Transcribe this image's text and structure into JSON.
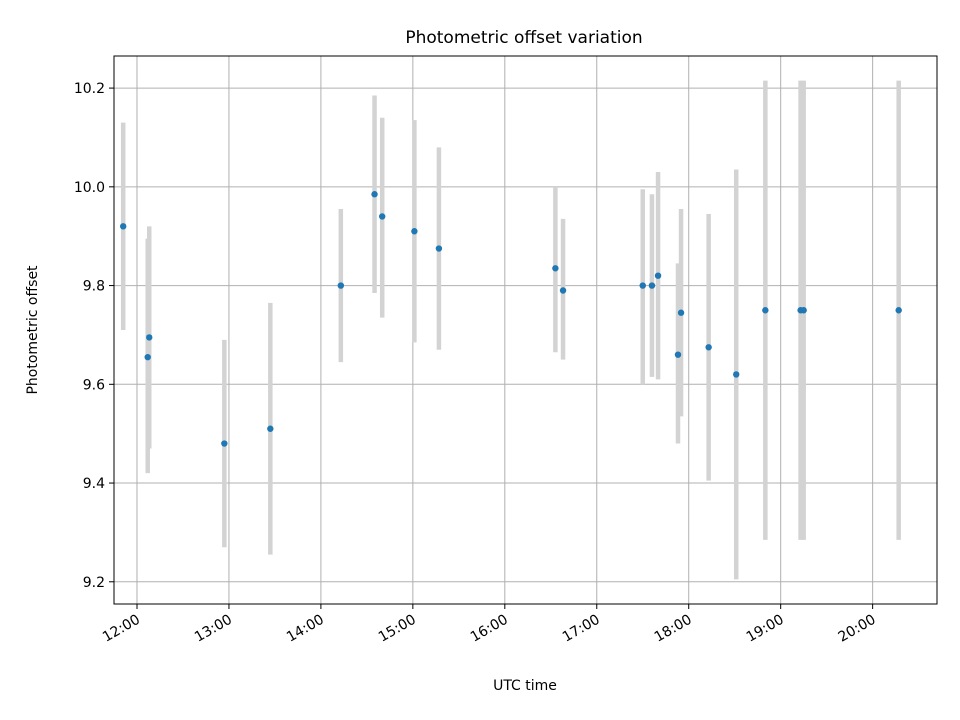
{
  "chart_data": {
    "type": "scatter",
    "title": "Photometric offset variation",
    "xlabel": "UTC time",
    "ylabel": "Photometric offset",
    "xlim": [
      "11:45",
      "20:42"
    ],
    "ylim": [
      9.155,
      10.265
    ],
    "x_ticks": [
      "12:00",
      "13:00",
      "14:00",
      "15:00",
      "16:00",
      "17:00",
      "18:00",
      "19:00",
      "20:00"
    ],
    "y_ticks": [
      "9.2",
      "9.4",
      "9.6",
      "9.8",
      "10.0",
      "10.2"
    ],
    "grid": true,
    "colors": {
      "points": "#1f77b4",
      "errorbars": "#d3d3d3",
      "grid": "#b0b0b0"
    },
    "points": [
      {
        "x": "11:51",
        "y": 9.92,
        "err_low": 9.71,
        "err_high": 10.13
      },
      {
        "x": "12:07",
        "y": 9.655,
        "err_low": 9.42,
        "err_high": 9.895
      },
      {
        "x": "12:08",
        "y": 9.695,
        "err_low": 9.47,
        "err_high": 9.92
      },
      {
        "x": "12:57",
        "y": 9.48,
        "err_low": 9.27,
        "err_high": 9.69
      },
      {
        "x": "13:27",
        "y": 9.51,
        "err_low": 9.255,
        "err_high": 9.765
      },
      {
        "x": "14:13",
        "y": 9.8,
        "err_low": 9.645,
        "err_high": 9.955
      },
      {
        "x": "14:35",
        "y": 9.985,
        "err_low": 9.785,
        "err_high": 10.185
      },
      {
        "x": "14:40",
        "y": 9.94,
        "err_low": 9.735,
        "err_high": 10.14
      },
      {
        "x": "15:01",
        "y": 9.91,
        "err_low": 9.685,
        "err_high": 10.135
      },
      {
        "x": "15:17",
        "y": 9.875,
        "err_low": 9.67,
        "err_high": 10.08
      },
      {
        "x": "16:33",
        "y": 9.835,
        "err_low": 9.665,
        "err_high": 10.0
      },
      {
        "x": "16:38",
        "y": 9.79,
        "err_low": 9.65,
        "err_high": 9.935
      },
      {
        "x": "17:30",
        "y": 9.8,
        "err_low": 9.6,
        "err_high": 9.995
      },
      {
        "x": "17:36",
        "y": 9.8,
        "err_low": 9.615,
        "err_high": 9.985
      },
      {
        "x": "17:40",
        "y": 9.82,
        "err_low": 9.61,
        "err_high": 10.03
      },
      {
        "x": "17:53",
        "y": 9.66,
        "err_low": 9.48,
        "err_high": 9.845
      },
      {
        "x": "17:55",
        "y": 9.745,
        "err_low": 9.535,
        "err_high": 9.955
      },
      {
        "x": "18:13",
        "y": 9.675,
        "err_low": 9.405,
        "err_high": 9.945
      },
      {
        "x": "18:31",
        "y": 9.62,
        "err_low": 9.205,
        "err_high": 10.035
      },
      {
        "x": "18:50",
        "y": 9.75,
        "err_low": 9.285,
        "err_high": 10.215
      },
      {
        "x": "19:13",
        "y": 9.75,
        "err_low": 9.285,
        "err_high": 10.215
      },
      {
        "x": "19:15",
        "y": 9.75,
        "err_low": 9.285,
        "err_high": 10.215
      },
      {
        "x": "20:17",
        "y": 9.75,
        "err_low": 9.285,
        "err_high": 10.215
      }
    ]
  }
}
